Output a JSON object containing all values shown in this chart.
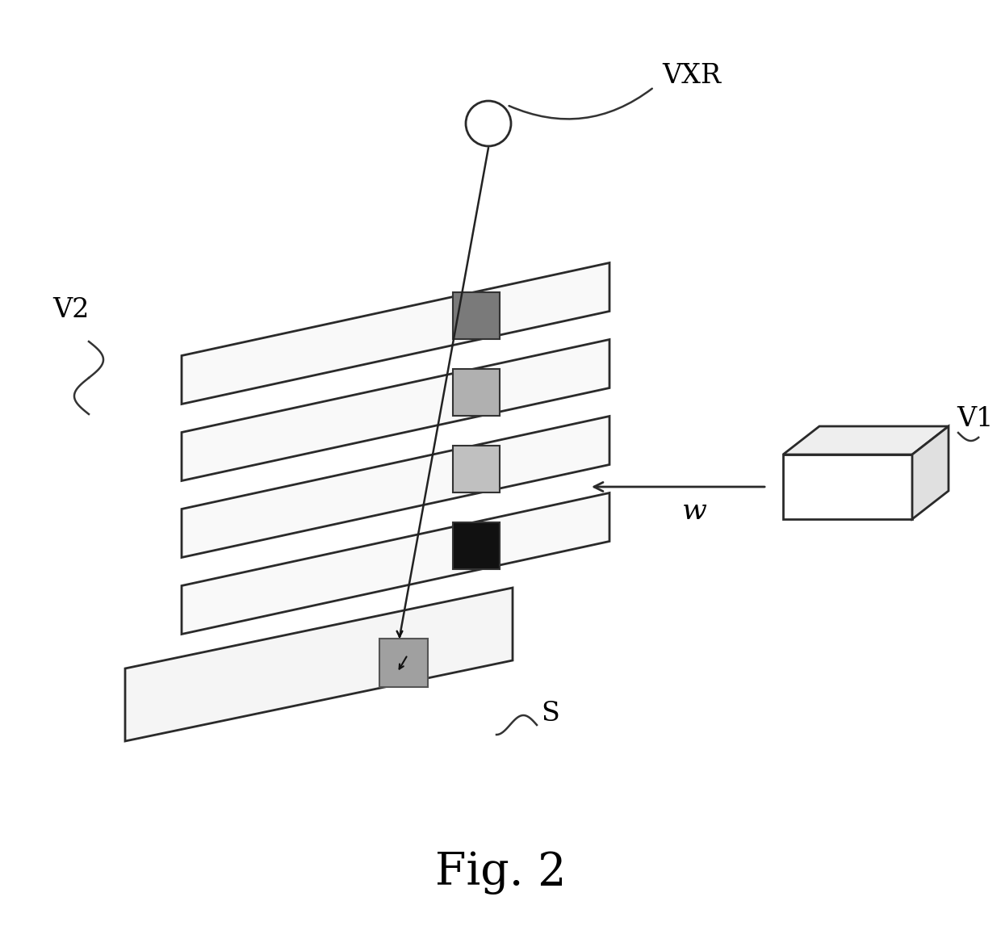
{
  "title": "Fig. 2",
  "background_color": "#ffffff",
  "fig_width": 12.4,
  "fig_height": 11.73,
  "label_VXR": "VXR",
  "label_V2": "V2",
  "label_V1": "V1",
  "label_w": "w",
  "label_S": "S",
  "layer_edge_color": "#2a2a2a",
  "layer_face_color": "#f9f9f9",
  "sq_colors_top_to_bottom": [
    "#7a7a7a",
    "#b0b0b0",
    "#c0c0c0",
    "#111111"
  ],
  "bottom_sq_color": "#a0a0a0",
  "fig2_fontsize": 40,
  "label_fontsize": 24,
  "lw_layer": 2.0,
  "lw_ray": 1.8
}
